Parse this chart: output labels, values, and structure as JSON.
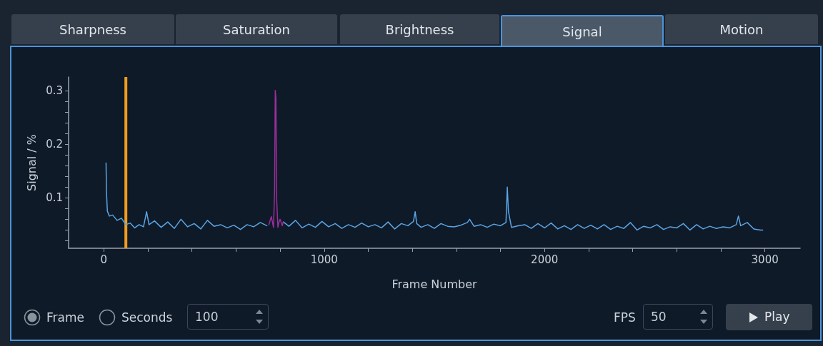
{
  "chart_data": {
    "type": "line",
    "xlabel": "Frame Number",
    "ylabel": "Signal / %",
    "xlim": [
      -160,
      3160
    ],
    "ylim": [
      0.006,
      0.325
    ],
    "xticks": [
      0,
      {
        "value": 200,
        "label": null
      },
      {
        "value": 400,
        "label": null
      },
      {
        "value": 600,
        "label": null
      },
      {
        "value": 800,
        "label": null
      },
      1000,
      {
        "value": 1200,
        "label": null
      },
      {
        "value": 1400,
        "label": null
      },
      {
        "value": 1600,
        "label": null
      },
      {
        "value": 1800,
        "label": null
      },
      2000,
      {
        "value": 2200,
        "label": null
      },
      {
        "value": 2400,
        "label": null
      },
      {
        "value": 2600,
        "label": null
      },
      {
        "value": 2800,
        "label": null
      },
      3000
    ],
    "yticks": [
      {
        "value": 0.02,
        "label": null
      },
      {
        "value": 0.04,
        "label": null
      },
      {
        "value": 0.06,
        "label": null
      },
      {
        "value": 0.08,
        "label": null
      },
      0.1,
      {
        "value": 0.12,
        "label": null
      },
      {
        "value": 0.14,
        "label": null
      },
      {
        "value": 0.16,
        "label": null
      },
      {
        "value": 0.18,
        "label": null
      },
      0.2,
      {
        "value": 0.22,
        "label": null
      },
      {
        "value": 0.24,
        "label": null
      },
      {
        "value": 0.26,
        "label": null
      },
      {
        "value": 0.28,
        "label": null
      },
      0.3
    ],
    "grid": false,
    "marker": "none",
    "line_style": "solid",
    "ref_lines": [
      {
        "axis": "x",
        "value": 100,
        "color": "#f39c1f"
      }
    ],
    "series": [
      {
        "color": "#5aa5e6",
        "x": [
          10,
          12,
          16,
          25,
          40,
          60,
          80,
          100,
          120,
          140,
          160,
          180,
          194,
          205,
          230,
          260,
          290,
          320,
          350,
          380,
          410,
          440,
          470,
          500,
          530,
          560,
          590,
          620,
          650,
          680,
          710,
          740,
          780,
          815,
          840,
          870,
          900,
          930,
          960,
          990,
          1020,
          1050,
          1080,
          1110,
          1140,
          1170,
          1200,
          1230,
          1260,
          1290,
          1320,
          1350,
          1380,
          1405,
          1413,
          1420,
          1440,
          1470,
          1500,
          1530,
          1560,
          1590,
          1620,
          1650,
          1660,
          1680,
          1710,
          1740,
          1770,
          1800,
          1825,
          1831,
          1836,
          1850,
          1880,
          1910,
          1940,
          1970,
          2000,
          2030,
          2060,
          2090,
          2120,
          2150,
          2180,
          2210,
          2240,
          2270,
          2300,
          2330,
          2360,
          2390,
          2420,
          2450,
          2480,
          2510,
          2540,
          2570,
          2600,
          2630,
          2660,
          2690,
          2720,
          2750,
          2780,
          2810,
          2840,
          2870,
          2880,
          2890,
          2920,
          2950,
          2980,
          2990
        ],
        "values": [
          0.165,
          0.11,
          0.075,
          0.066,
          0.068,
          0.058,
          0.062,
          0.05,
          0.053,
          0.044,
          0.05,
          0.046,
          0.074,
          0.05,
          0.057,
          0.045,
          0.055,
          0.043,
          0.06,
          0.046,
          0.052,
          0.042,
          0.058,
          0.047,
          0.05,
          0.044,
          0.049,
          0.041,
          0.05,
          0.046,
          0.054,
          0.048,
          null,
          0.055,
          0.047,
          0.058,
          0.044,
          0.051,
          0.045,
          0.056,
          0.046,
          0.052,
          0.043,
          0.05,
          0.045,
          0.053,
          0.046,
          0.05,
          0.044,
          0.055,
          0.042,
          0.052,
          0.048,
          0.056,
          0.074,
          0.052,
          0.045,
          0.05,
          0.043,
          0.052,
          0.047,
          0.046,
          0.049,
          0.054,
          0.06,
          0.047,
          0.05,
          0.045,
          0.051,
          0.048,
          0.054,
          0.12,
          0.075,
          0.045,
          0.048,
          0.05,
          0.043,
          0.052,
          0.044,
          0.053,
          0.042,
          0.048,
          0.041,
          0.05,
          0.043,
          0.049,
          0.042,
          0.05,
          0.041,
          0.047,
          0.043,
          0.054,
          0.04,
          0.047,
          0.044,
          0.05,
          0.041,
          0.046,
          0.044,
          0.052,
          0.04,
          0.05,
          0.042,
          0.047,
          0.043,
          0.046,
          0.044,
          0.05,
          0.066,
          0.048,
          0.054,
          0.042,
          0.04,
          0.04
        ]
      },
      {
        "color": "#9b2f9e",
        "x": [
          749,
          760,
          770,
          775,
          778,
          781,
          784,
          790,
          795,
          800,
          810,
          814
        ],
        "values": [
          0.05,
          0.065,
          0.045,
          0.115,
          0.3,
          0.285,
          0.1,
          0.045,
          0.055,
          0.06,
          0.048,
          0.055
        ]
      }
    ],
    "annotations": [
      "Sharpness",
      "Saturation",
      "Brightness",
      "Signal",
      "Motion",
      "Frame",
      "Seconds",
      "100",
      "FPS",
      "50",
      "Play"
    ]
  }
}
